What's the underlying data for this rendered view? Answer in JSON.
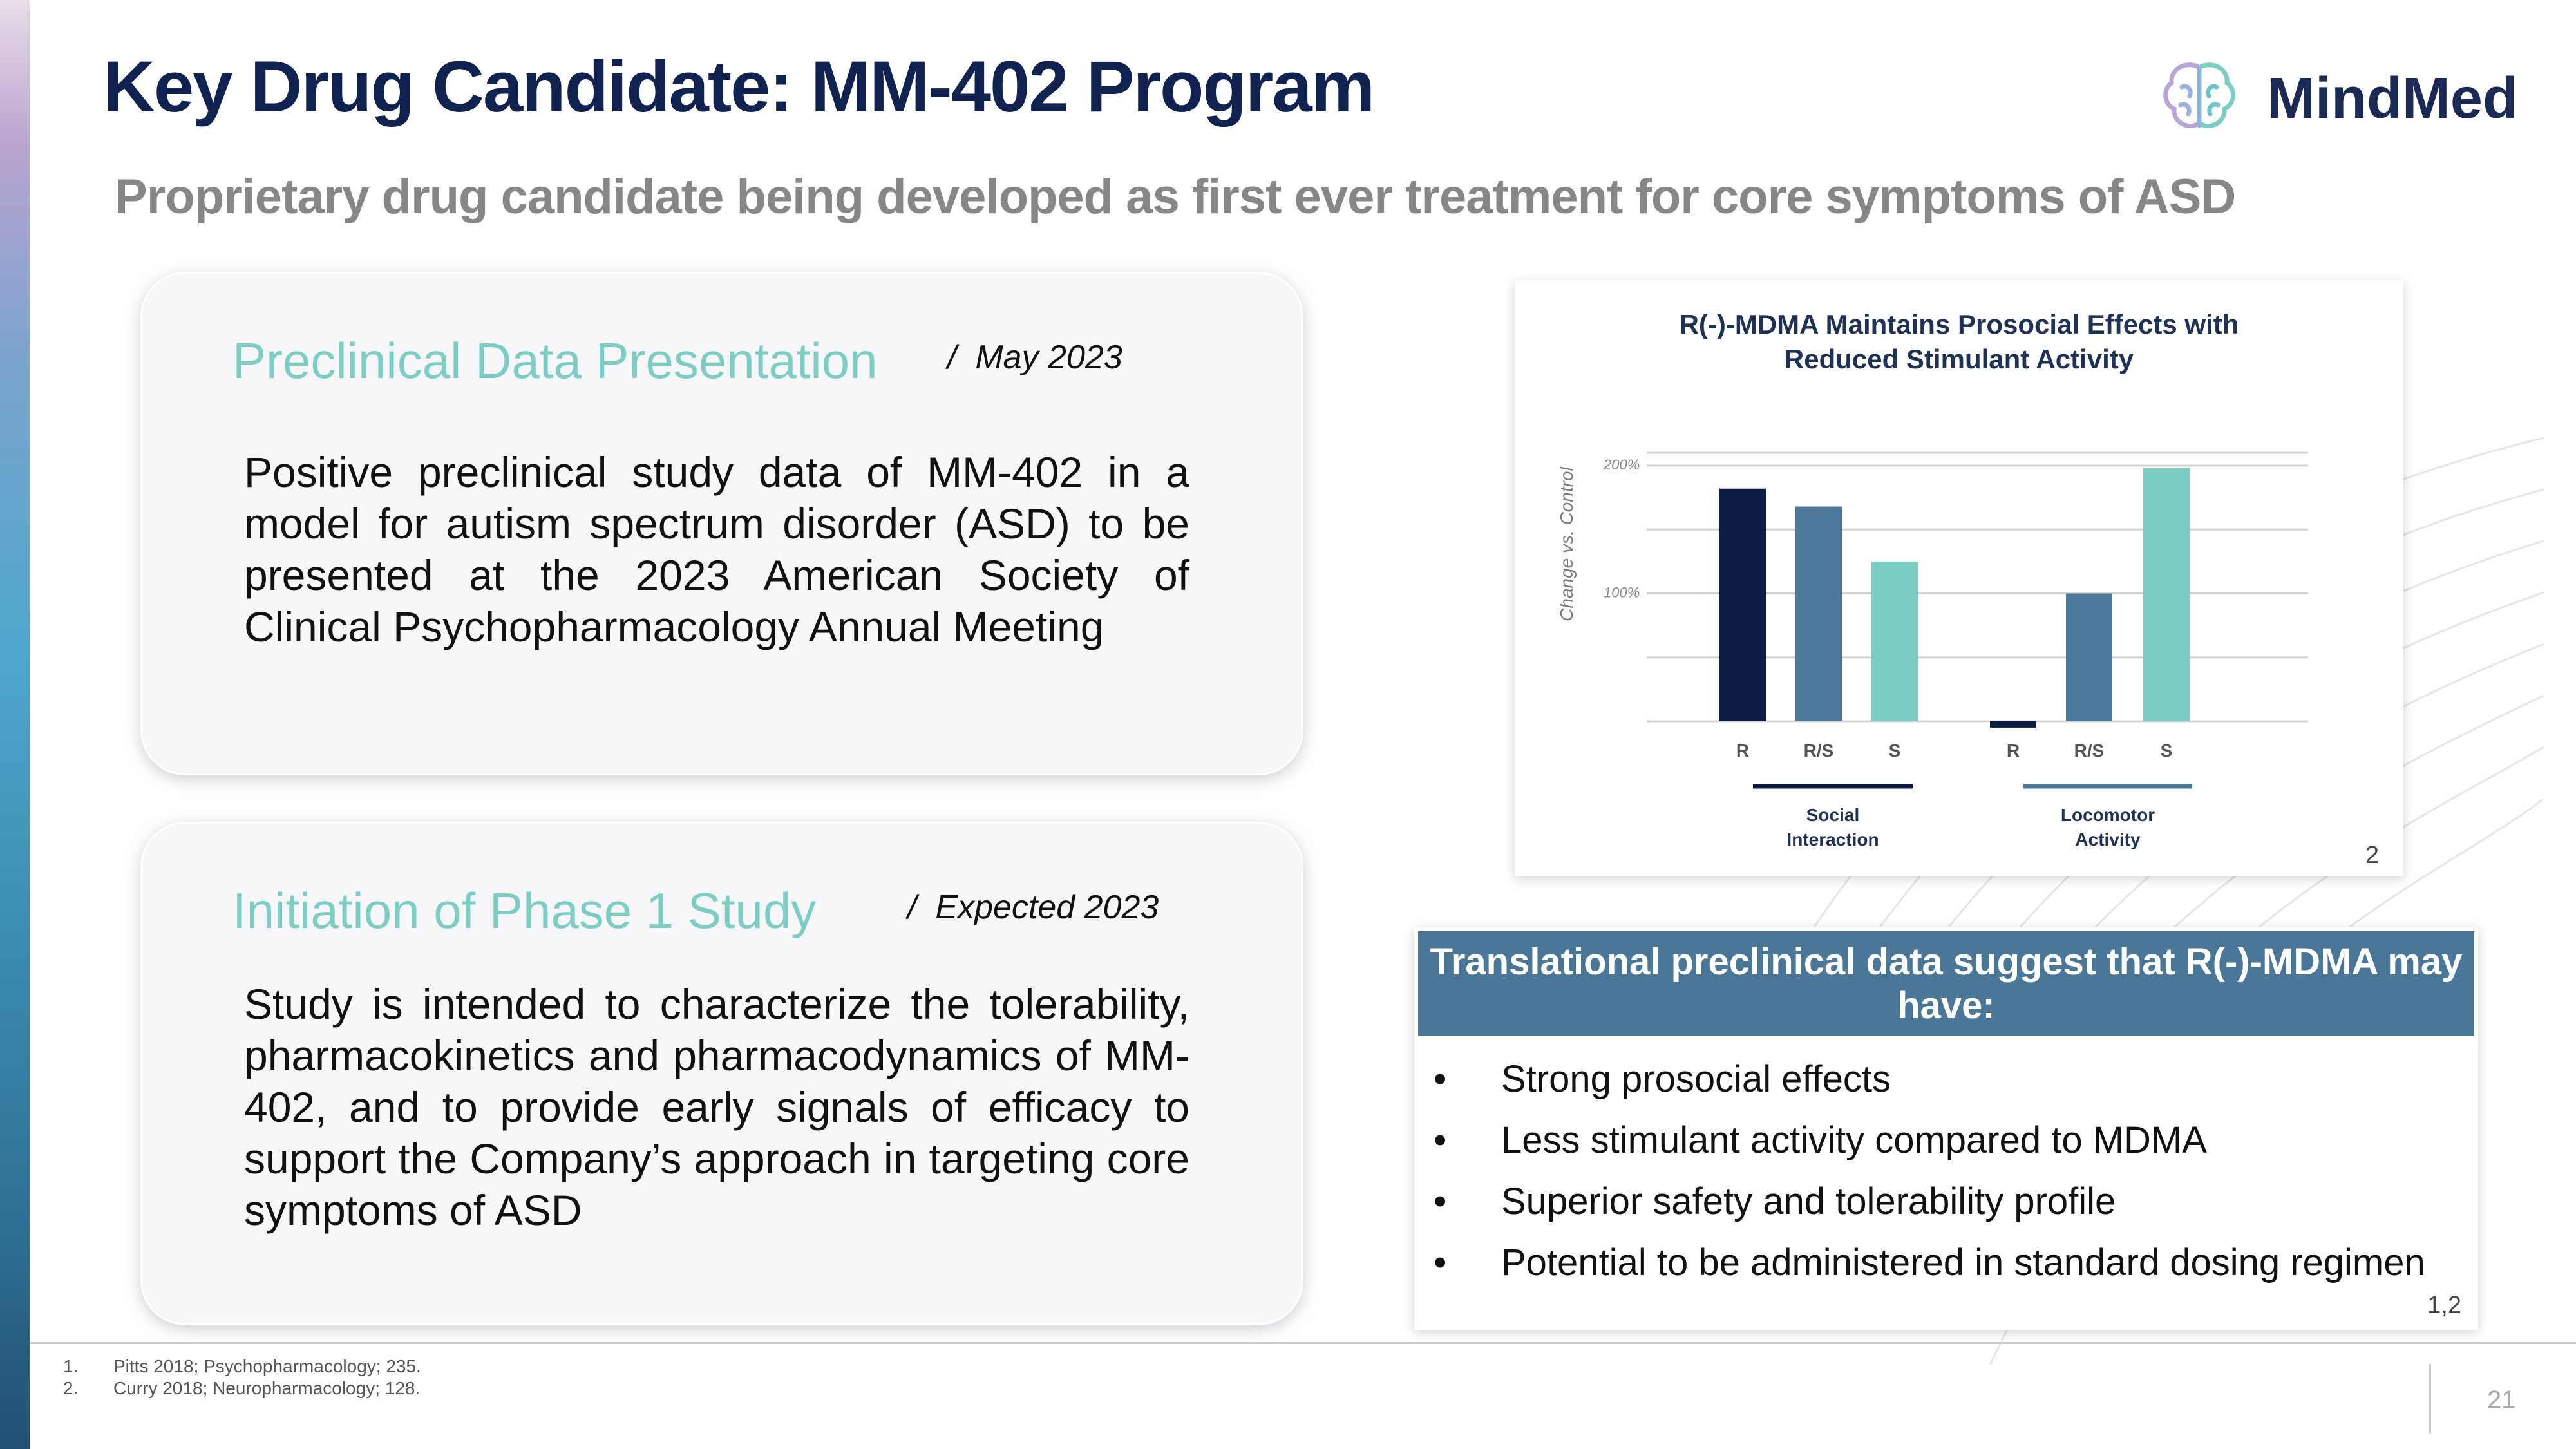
{
  "slide": {
    "title": "Key Drug Candidate: MM-402 Program",
    "subtitle": "Proprietary drug candidate being developed as first ever treatment for core symptoms of ASD",
    "page_number": "21"
  },
  "logo": {
    "text": "MindMed",
    "icon": "brain-icon"
  },
  "card1": {
    "heading": "Preclinical Data Presentation",
    "date": "May 2023",
    "body": "Positive preclinical study data of MM-402 in a model for autism spectrum disorder (ASD) to be presented at the 2023 American Society of Clinical Psychopharmacology Annual Meeting"
  },
  "card2": {
    "heading": "Initiation of  Phase 1 Study",
    "date": "Expected 2023",
    "body": "Study is intended to characterize the tolerability, pharmacokinetics and pharmacodynamics of MM-402, and to provide early signals of efficacy to support the Company’s approach in targeting core symptoms of ASD"
  },
  "separator": "/",
  "chart_data": {
    "type": "bar",
    "title_line1": "R(-)-MDMA Maintains Prosocial Effects with",
    "title_line2": "Reduced Stimulant Activity",
    "ylabel": "Change vs. Control",
    "yticks": [
      "200%",
      "100%"
    ],
    "ylim": [
      -10,
      210
    ],
    "groups": [
      {
        "name": "Social Interaction",
        "line1": "Social",
        "line2": "Interaction"
      },
      {
        "name": "Locomotor Activity",
        "line1": "Locomotor",
        "line2": "Activity"
      }
    ],
    "bars": [
      {
        "group": 0,
        "label": "R",
        "value": 182,
        "color": "#0d1e45"
      },
      {
        "group": 0,
        "label": "R/S",
        "value": 168,
        "color": "#4b7898"
      },
      {
        "group": 0,
        "label": "S",
        "value": 125,
        "color": "#7ccdc3"
      },
      {
        "group": 1,
        "label": "R",
        "value": -5,
        "color": "#0d1e45"
      },
      {
        "group": 1,
        "label": "R/S",
        "value": 100,
        "color": "#4b7898"
      },
      {
        "group": 1,
        "label": "S",
        "value": 198,
        "color": "#7ccdc3"
      }
    ],
    "footnote_ref": "2"
  },
  "translational": {
    "header": "Translational preclinical data suggest that R(-)-MDMA may have:",
    "bullet_symbol": "•",
    "bullets": [
      "Strong prosocial effects",
      "Less stimulant activity compared to MDMA",
      "Superior safety and tolerability profile",
      "Potential to be administered in standard dosing regimen"
    ],
    "ref": "1,2"
  },
  "footnotes": [
    {
      "num": "1.",
      "text": "Pitts 2018; Psychopharmacology; 235."
    },
    {
      "num": "2.",
      "text": "Curry 2018; Neuropharmacology; 128."
    }
  ]
}
